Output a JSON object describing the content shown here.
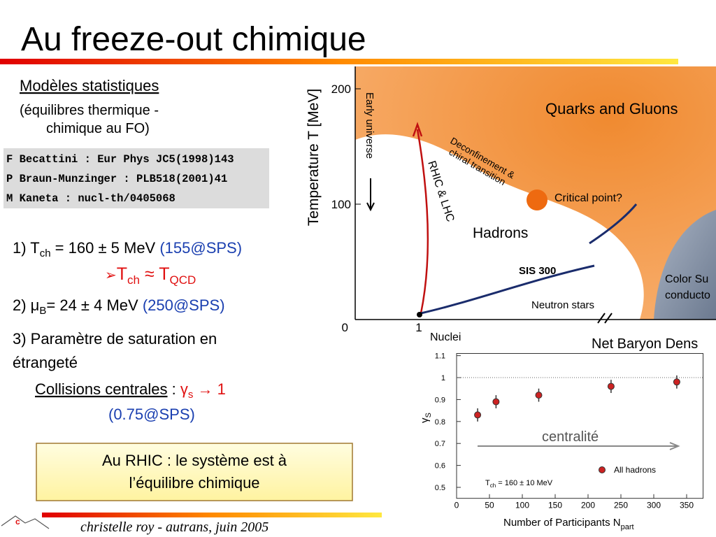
{
  "title": "Au freeze-out chimique",
  "models": {
    "heading": "Modèles statistiques",
    "note_lines": [
      "(équilibres thermique  -",
      "chimique au FO)"
    ]
  },
  "references": [
    "F Becattini : Eur Phys JC5(1998)143",
    "P Braun-Munzinger : PLB518(2001)41",
    "M Kaneta : nucl-th/0405068"
  ],
  "item1": {
    "prefix": "1) T",
    "sub": "ch",
    "text": " = 160 ± 5 MeV ",
    "note": "(155@SPS)"
  },
  "conclusion": {
    "arrow": "➢",
    "t1": "T",
    "s1": "ch",
    "approx": " ≈ ",
    "t2": "T",
    "s2": "QCD"
  },
  "item2": {
    "prefix": "2) μ",
    "sub": "B",
    "text": "= 24 ± 4 MeV ",
    "note": "(250@SPS)"
  },
  "item3": [
    "3) Paramètre de saturation en",
    "étrangeté"
  ],
  "collisions": {
    "label": "Collisions centrales",
    "sep": " : ",
    "gamma": "γ",
    "sub": "s",
    "arrow": " → 1",
    "note": "(0.75@SPS)"
  },
  "box": [
    "Au RHIC : le système est à",
    "l’équilibre chimique"
  ],
  "footer": "christelle roy - autrans, juin 2005",
  "phase_diagram": {
    "y_label": "Temperature T [MeV]",
    "ticks": [
      "200",
      "100",
      "0",
      "1"
    ],
    "early": "Early universe",
    "qgp": "Quarks and Gluons",
    "deconf": [
      "Deconfinement &",
      "chiral transition"
    ],
    "critical": "Critical point?",
    "rhic": "RHIC & LHC",
    "hadrons": "Hadrons",
    "sis": "SIS 300",
    "neutron": "Neutron stars",
    "color_sc": [
      "Color Su",
      "conducto"
    ],
    "nuclei": "Nuclei",
    "x_label": "Net Baryon Dens"
  },
  "chart_data": {
    "type": "scatter",
    "x_label": {
      "text": "Number of Participants N",
      "sub": "part"
    },
    "y_label": {
      "text": "γ",
      "sub": "S"
    },
    "x": [
      32,
      60,
      125,
      235,
      335
    ],
    "series": [
      {
        "name": "All hadrons",
        "color": "#cc2222",
        "values": [
          0.83,
          0.89,
          0.92,
          0.96,
          0.98
        ],
        "errors": [
          0.03,
          0.03,
          0.03,
          0.03,
          0.03
        ]
      }
    ],
    "xlim": [
      0,
      375
    ],
    "ylim": [
      0.45,
      1.11
    ],
    "xticks": [
      0,
      50,
      100,
      150,
      200,
      250,
      300,
      350
    ],
    "yticks": [
      0.5,
      0.6,
      0.7,
      0.8,
      0.9,
      1,
      1.1
    ],
    "reference_line": 1,
    "annotation": {
      "t": "T",
      "sub": "ch",
      "text": " = 160 ± 10 MeV"
    },
    "arrow_label": "centralité"
  }
}
